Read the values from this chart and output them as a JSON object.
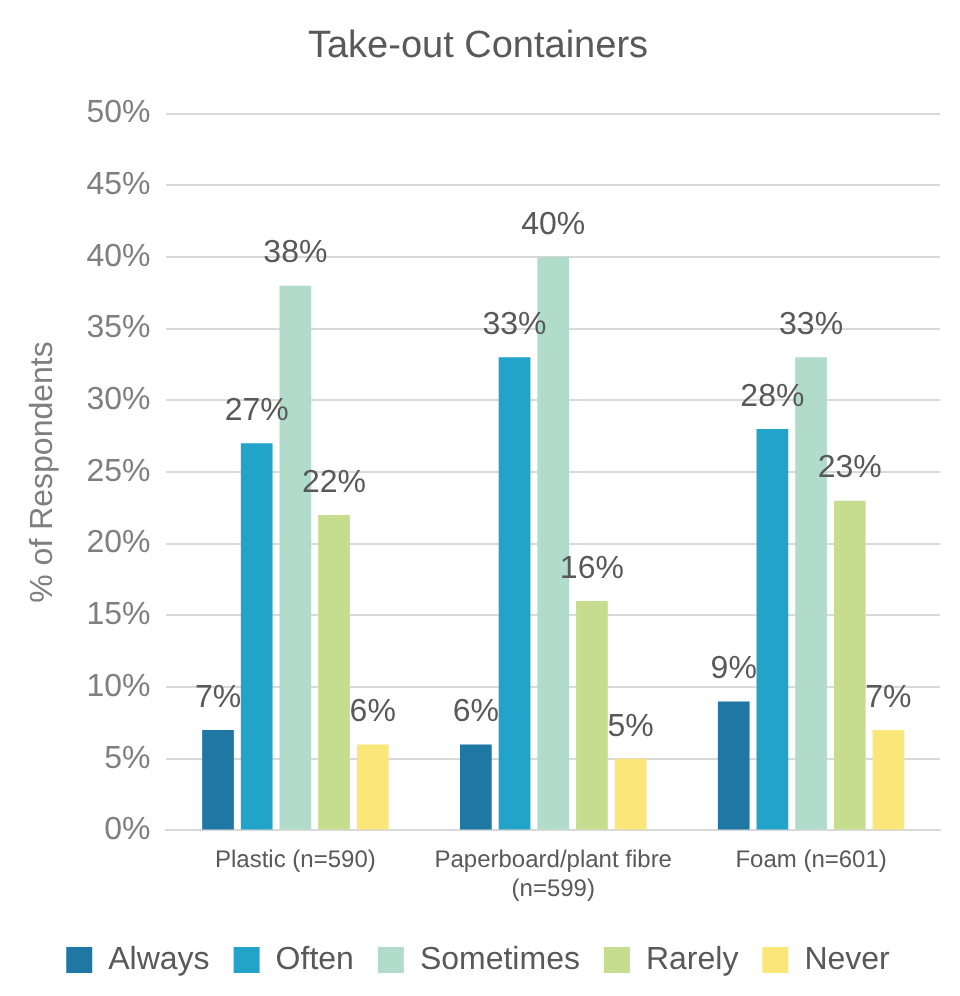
{
  "chart_data": {
    "type": "bar",
    "title": "Take-out Containers",
    "ylabel": "% of Respondents",
    "categories": [
      "Plastic (n=590)",
      "Paperboard/plant fibre (n=599)",
      "Foam (n=601)"
    ],
    "series": [
      {
        "name": "Always",
        "color": "#1f77a3",
        "values": [
          7,
          6,
          9
        ],
        "value_labels": [
          "7%",
          "6%",
          "9%"
        ]
      },
      {
        "name": "Often",
        "color": "#22a3c9",
        "values": [
          27,
          33,
          28
        ],
        "value_labels": [
          "27%",
          "33%",
          "28%"
        ]
      },
      {
        "name": "Sometimes",
        "color": "#b1dccb",
        "values": [
          38,
          40,
          33
        ],
        "value_labels": [
          "38%",
          "40%",
          "33%"
        ]
      },
      {
        "name": "Rarely",
        "color": "#c6dd8f",
        "values": [
          22,
          16,
          23
        ],
        "value_labels": [
          "22%",
          "16%",
          "23%"
        ]
      },
      {
        "name": "Never",
        "color": "#fbe679",
        "values": [
          6,
          5,
          7
        ],
        "value_labels": [
          "6%",
          "5%",
          "7%"
        ]
      }
    ],
    "ylim": [
      0,
      50
    ],
    "yticks": [
      {
        "value": 0,
        "label": "0%"
      },
      {
        "value": 5,
        "label": "5%"
      },
      {
        "value": 10,
        "label": "10%"
      },
      {
        "value": 15,
        "label": "15%"
      },
      {
        "value": 20,
        "label": "20%"
      },
      {
        "value": 25,
        "label": "25%"
      },
      {
        "value": 30,
        "label": "30%"
      },
      {
        "value": 35,
        "label": "35%"
      },
      {
        "value": 40,
        "label": "40%"
      },
      {
        "value": 45,
        "label": "45%"
      },
      {
        "value": 50,
        "label": "50%"
      }
    ],
    "grid": "y",
    "legend": "bottom"
  }
}
